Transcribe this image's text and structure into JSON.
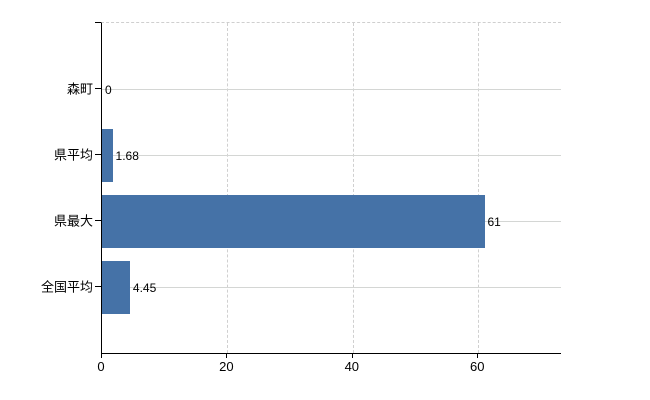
{
  "chart_data": {
    "type": "bar",
    "orientation": "horizontal",
    "title": "",
    "categories": [
      "森町",
      "県平均",
      "県最大",
      "全国平均"
    ],
    "values": [
      0,
      1.68,
      61,
      4.45
    ],
    "data_labels": [
      "0",
      "1.68",
      "61",
      "4.45"
    ],
    "x_ticks": [
      0,
      20,
      40,
      60
    ],
    "x_tick_labels": [
      "0",
      "20",
      "40",
      "60"
    ],
    "xlim": [
      0,
      73.2
    ],
    "xlabel": "",
    "ylabel": "",
    "legend": "none",
    "grid": "horizontal solid at category rows, vertical dashed at ticks, dashed top border",
    "colors": {
      "bar": "#4572a7",
      "gridline": "#d4d6d4",
      "axis": "#000000",
      "label": "#000000",
      "background": "#ffffff"
    }
  }
}
